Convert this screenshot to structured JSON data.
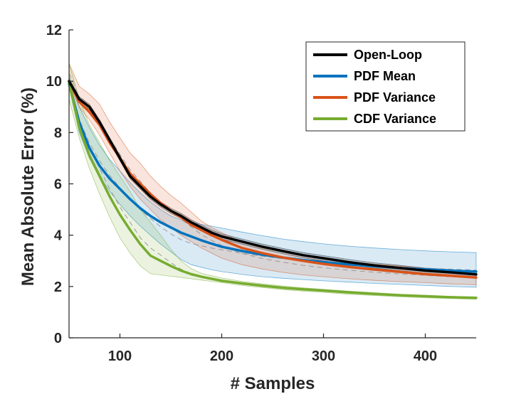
{
  "chart_data": {
    "type": "line",
    "title": "",
    "xlabel": "# Samples",
    "ylabel": "Mean Absolute Error (%)",
    "xlim": [
      50,
      450
    ],
    "ylim": [
      0,
      12
    ],
    "x_ticks": [
      100,
      200,
      300,
      400
    ],
    "y_ticks": [
      0,
      2,
      4,
      6,
      8,
      10,
      12
    ],
    "x_tick_labels": [
      "100",
      "200",
      "300",
      "400"
    ],
    "y_tick_labels": [
      "0",
      "2",
      "4",
      "6",
      "8",
      "10",
      "12"
    ],
    "legend_position": "top-right",
    "x": [
      50,
      60,
      70,
      80,
      90,
      100,
      110,
      120,
      130,
      140,
      150,
      160,
      170,
      180,
      190,
      200,
      220,
      240,
      260,
      280,
      300,
      325,
      350,
      375,
      400,
      425,
      450
    ],
    "series": [
      {
        "name": "Open-Loop",
        "color": "#000000",
        "values": [
          10.0,
          9.3,
          9.0,
          8.4,
          7.7,
          7.0,
          6.3,
          5.9,
          5.5,
          5.2,
          4.95,
          4.75,
          4.5,
          4.3,
          4.1,
          3.95,
          3.75,
          3.55,
          3.38,
          3.22,
          3.1,
          2.95,
          2.82,
          2.72,
          2.62,
          2.55,
          2.47
        ],
        "lower": [
          9.9,
          9.2,
          8.9,
          8.3,
          7.6,
          6.9,
          6.2,
          5.8,
          5.4,
          5.1,
          4.85,
          4.65,
          4.4,
          4.2,
          4.0,
          3.85,
          3.65,
          3.45,
          3.28,
          3.12,
          3.0,
          2.85,
          2.72,
          2.62,
          2.52,
          2.45,
          2.37
        ],
        "upper": [
          10.1,
          9.4,
          9.1,
          8.5,
          7.8,
          7.1,
          6.4,
          6.0,
          5.6,
          5.3,
          5.05,
          4.85,
          4.6,
          4.4,
          4.2,
          4.05,
          3.85,
          3.65,
          3.48,
          3.32,
          3.2,
          3.05,
          2.92,
          2.82,
          2.72,
          2.65,
          2.57
        ]
      },
      {
        "name": "PDF Mean",
        "color": "#0072BD",
        "values": [
          9.9,
          8.4,
          7.4,
          6.7,
          6.2,
          5.8,
          5.4,
          5.05,
          4.75,
          4.5,
          4.3,
          4.1,
          3.95,
          3.8,
          3.67,
          3.55,
          3.38,
          3.24,
          3.13,
          3.03,
          2.95,
          2.86,
          2.79,
          2.72,
          2.67,
          2.62,
          2.58
        ],
        "lower": [
          9.8,
          8.0,
          7.0,
          6.3,
          5.7,
          5.2,
          4.75,
          4.35,
          4.0,
          3.65,
          3.35,
          3.05,
          2.85,
          2.75,
          2.65,
          2.58,
          2.47,
          2.38,
          2.32,
          2.27,
          2.22,
          2.17,
          2.12,
          2.08,
          2.04,
          2.0,
          1.97
        ],
        "upper": [
          10.2,
          9.0,
          8.2,
          7.5,
          6.95,
          6.5,
          6.05,
          5.65,
          5.3,
          5.0,
          4.75,
          4.6,
          4.5,
          4.42,
          4.35,
          4.28,
          4.12,
          3.98,
          3.85,
          3.75,
          3.66,
          3.57,
          3.5,
          3.44,
          3.39,
          3.35,
          3.32
        ]
      },
      {
        "name": "PDF Variance",
        "color": "#D95319",
        "values": [
          10.0,
          9.2,
          8.8,
          8.3,
          7.6,
          7.0,
          6.4,
          6.0,
          5.6,
          5.25,
          4.95,
          4.7,
          4.4,
          4.2,
          4.0,
          3.82,
          3.5,
          3.3,
          3.13,
          3.0,
          2.88,
          2.76,
          2.66,
          2.57,
          2.48,
          2.42,
          2.35
        ],
        "lower": [
          9.9,
          9.0,
          8.5,
          7.9,
          7.2,
          6.5,
          5.9,
          5.4,
          5.0,
          4.6,
          4.3,
          4.0,
          3.75,
          3.5,
          3.3,
          3.1,
          2.85,
          2.68,
          2.55,
          2.45,
          2.38,
          2.3,
          2.24,
          2.19,
          2.15,
          2.1,
          2.07
        ],
        "upper": [
          10.7,
          9.8,
          9.5,
          9.1,
          8.4,
          7.8,
          7.2,
          6.8,
          6.3,
          5.9,
          5.55,
          5.25,
          4.9,
          4.55,
          4.3,
          4.1,
          3.72,
          3.5,
          3.35,
          3.2,
          3.08,
          2.97,
          2.87,
          2.79,
          2.72,
          2.66,
          2.6
        ]
      },
      {
        "name": "CDF Variance",
        "color": "#77AC30",
        "values": [
          9.95,
          8.2,
          7.1,
          6.3,
          5.5,
          4.8,
          4.2,
          3.65,
          3.2,
          3.0,
          2.8,
          2.62,
          2.48,
          2.38,
          2.3,
          2.22,
          2.12,
          2.03,
          1.95,
          1.89,
          1.84,
          1.77,
          1.71,
          1.66,
          1.62,
          1.58,
          1.56
        ],
        "lower": [
          9.3,
          7.8,
          6.6,
          5.6,
          4.7,
          3.9,
          3.3,
          2.8,
          2.5,
          2.45,
          2.4,
          2.35,
          2.3,
          2.25,
          2.2,
          2.15,
          2.04,
          1.96,
          1.88,
          1.82,
          1.77,
          1.7,
          1.65,
          1.6,
          1.56,
          1.53,
          1.5
        ],
        "upper": [
          10.7,
          9.3,
          8.3,
          7.6,
          6.9,
          6.3,
          5.7,
          5.0,
          4.5,
          4.0,
          3.45,
          3.0,
          2.7,
          2.52,
          2.42,
          2.33,
          2.2,
          2.1,
          2.02,
          1.95,
          1.89,
          1.82,
          1.76,
          1.7,
          1.66,
          1.62,
          1.59
        ]
      }
    ]
  }
}
